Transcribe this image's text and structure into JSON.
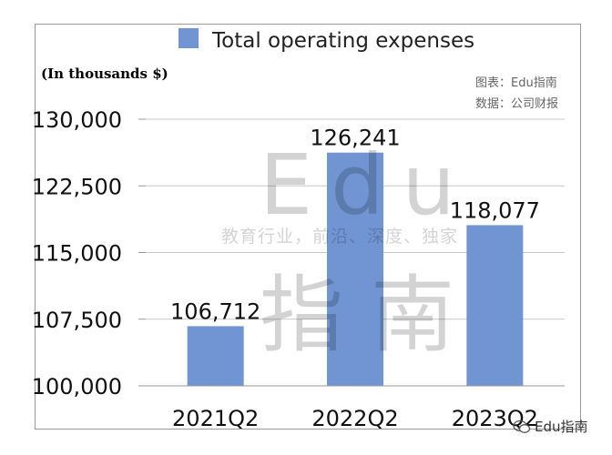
{
  "chart_data": {
    "type": "bar",
    "categories": [
      "2021Q2",
      "2022Q2",
      "2023Q2"
    ],
    "series": [
      {
        "name": "Total operating expenses",
        "values": [
          106712,
          126241,
          118077
        ]
      }
    ],
    "data_labels": [
      "106,712",
      "126,241",
      "118,077"
    ],
    "ylim": [
      100000,
      130000
    ],
    "yticks": [
      100000,
      107500,
      115000,
      122500,
      130000
    ],
    "ytick_labels": [
      "100,000",
      "107,500",
      "115,000",
      "122,500",
      "130,000"
    ],
    "unit_label": "(In thousands $)",
    "legend_position": "top-center",
    "grid": true,
    "bar_color": "#7095d2"
  },
  "source_note": [
    "图表：Edu指南",
    "数据：公司财报"
  ],
  "watermark": {
    "latin": "Edu",
    "tagline": "教育行业，前沿、深度、独家",
    "cjk": "指南"
  },
  "badge": {
    "text": "Edu指南",
    "icon": "wechat-icon"
  }
}
